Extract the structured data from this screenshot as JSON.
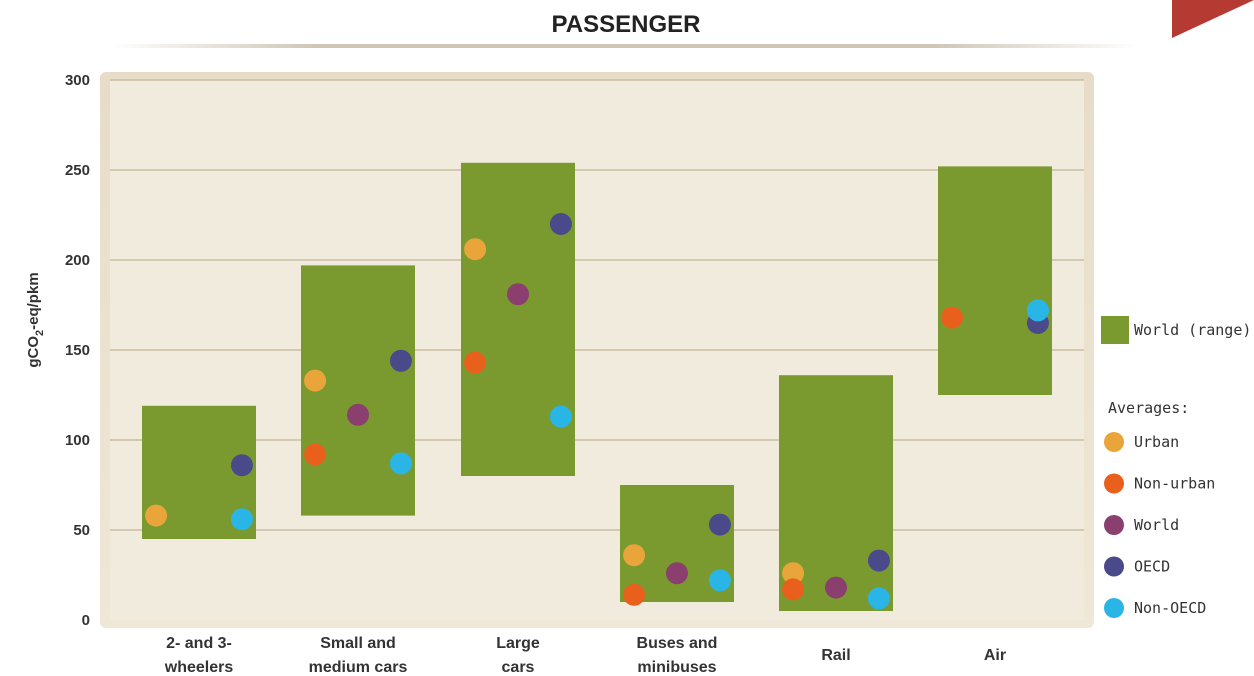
{
  "chart_data": {
    "type": "scatter",
    "title": "PASSENGER",
    "ylabel_main": "gCO",
    "ylabel_sub": "2",
    "ylabel_rest": "-eq/pkm",
    "ylim": [
      0,
      300
    ],
    "yticks": [
      0,
      50,
      100,
      150,
      200,
      250,
      300
    ],
    "grid": true,
    "legend_position": "right",
    "categories": [
      {
        "line1": "2- and 3-",
        "line2": "wheelers"
      },
      {
        "line1": "Small and",
        "line2": "medium cars"
      },
      {
        "line1": "Large",
        "line2": "cars"
      },
      {
        "line1": "Buses and",
        "line2": "minibuses"
      },
      {
        "line1": "Rail",
        "line2": ""
      },
      {
        "line1": "Air",
        "line2": ""
      }
    ],
    "range_series": {
      "name": "World (range)",
      "color": "#7a9a2f",
      "ranges": [
        [
          45,
          119
        ],
        [
          58,
          197
        ],
        [
          80,
          254
        ],
        [
          10,
          75
        ],
        [
          5,
          136
        ],
        [
          125,
          252
        ]
      ]
    },
    "averages_title": "Averages:",
    "series": [
      {
        "name": "Urban",
        "color": "#e9a43a",
        "values": [
          58,
          133,
          206,
          36,
          26,
          null
        ]
      },
      {
        "name": "Non-urban",
        "color": "#e8601c",
        "values": [
          null,
          92,
          143,
          14,
          17,
          168
        ]
      },
      {
        "name": "World",
        "color": "#8b3f6f",
        "values": [
          null,
          114,
          181,
          26,
          18,
          null
        ]
      },
      {
        "name": "OECD",
        "color": "#4a4a8a",
        "values": [
          86,
          144,
          220,
          53,
          33,
          165
        ]
      },
      {
        "name": "Non-OECD",
        "color": "#29b6e6",
        "values": [
          56,
          87,
          113,
          22,
          12,
          172
        ]
      }
    ],
    "point_offsets": [
      [
        -0.27,
        0,
        0,
        0.27,
        0.27
      ],
      [
        -0.27,
        -0.27,
        0,
        0.27,
        0.27
      ],
      [
        -0.27,
        -0.27,
        0,
        0.27,
        0.27
      ],
      [
        -0.27,
        -0.27,
        0,
        0.27,
        0.27
      ],
      [
        -0.27,
        -0.27,
        0,
        0.27,
        0.27
      ],
      [
        0,
        -0.27,
        0,
        0.27,
        0.27
      ]
    ]
  },
  "colors": {
    "plot_background": "#f1ebdd",
    "plot_frame": "#ddd2bd",
    "gridline": "#c9bca2",
    "corner_accent": "#b53a32"
  }
}
